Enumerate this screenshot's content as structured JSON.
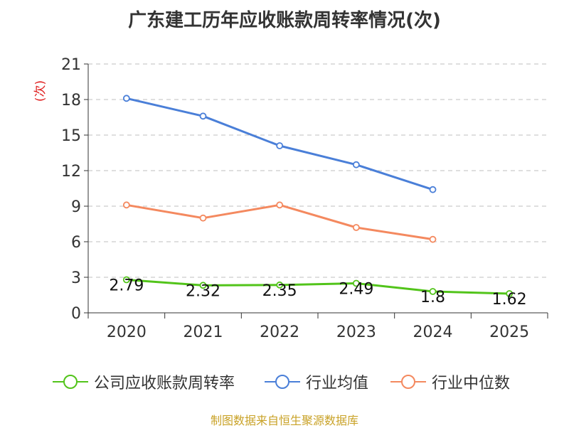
{
  "title": "广东建工历年应收账款周转率情况(次)",
  "source": "制图数据来自恒生聚源数据库",
  "colors": {
    "company": "#52c41a",
    "average": "#4a7fd8",
    "median": "#f4895f",
    "unit": "#e02020",
    "axis": "#333333",
    "grid": "#cccccc"
  },
  "chart_data": {
    "type": "line",
    "title": "广东建工历年应收账款周转率情况(次)",
    "ylabel": "(次)",
    "xlabel": "",
    "categories": [
      "2020",
      "2021",
      "2022",
      "2023",
      "2024",
      "2025"
    ],
    "ylim": [
      0,
      21
    ],
    "yticks": [
      0,
      3,
      6,
      9,
      12,
      15,
      18,
      21
    ],
    "grid": true,
    "legend_position": "bottom",
    "series": [
      {
        "name": "公司应收账款周转率",
        "values": [
          2.79,
          2.32,
          2.35,
          2.49,
          1.8,
          1.62
        ],
        "labels": [
          "2.79",
          "2.32",
          "2.35",
          "2.49",
          "1.8",
          "1.62"
        ],
        "color": "#52c41a",
        "show_labels": true
      },
      {
        "name": "行业均值",
        "values": [
          18.1,
          16.6,
          14.1,
          12.5,
          10.4,
          null
        ],
        "color": "#4a7fd8",
        "show_labels": false
      },
      {
        "name": "行业中位数",
        "values": [
          9.1,
          8.0,
          9.1,
          7.2,
          6.2,
          null
        ],
        "color": "#f4895f",
        "show_labels": false
      }
    ]
  }
}
